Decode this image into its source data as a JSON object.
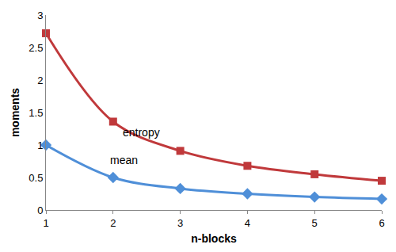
{
  "chart_data": {
    "type": "line",
    "x_label": "n-blocks",
    "y_label": "moments",
    "x": [
      1,
      2,
      3,
      4,
      5,
      6
    ],
    "series": [
      {
        "name": "entropy",
        "color": "#c0393b",
        "marker": "square",
        "line_style": "smooth",
        "values": [
          2.72,
          1.36,
          0.91,
          0.68,
          0.55,
          0.45
        ]
      },
      {
        "name": "mean",
        "color": "#4f8fd8",
        "marker": "diamond",
        "line_style": "smooth",
        "values": [
          1,
          0.5,
          0.33,
          0.25,
          0.2,
          0.17
        ]
      }
    ],
    "xlim": [
      1,
      6
    ],
    "xticks": [
      1,
      2,
      3,
      4,
      5,
      6
    ],
    "ylim": [
      0,
      3
    ],
    "yticks": [
      0,
      0.5,
      1,
      1.5,
      2,
      2.5,
      3
    ],
    "grid": false
  }
}
